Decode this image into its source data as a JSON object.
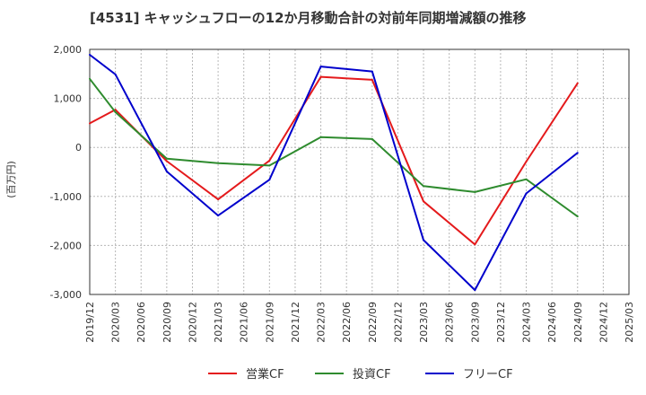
{
  "chart_data": {
    "type": "line",
    "title": "[4531]  キャッシュフローの12か月移動合計の対前年同期増減額の推移",
    "ylabel": "(百万円)",
    "xlabel": "",
    "ylim": [
      -3000,
      2000
    ],
    "yticks": [
      2000,
      1000,
      0,
      -1000,
      -2000,
      -3000
    ],
    "ytick_labels": [
      "2,000",
      "1,000",
      "0",
      "-1,000",
      "-2,000",
      "-3,000"
    ],
    "x_labels": [
      "2019/12",
      "2020/03",
      "2020/06",
      "2020/09",
      "2020/12",
      "2021/03",
      "2021/06",
      "2021/09",
      "2021/12",
      "2022/03",
      "2022/06",
      "2022/09",
      "2022/12",
      "2023/03",
      "2023/06",
      "2023/09",
      "2023/12",
      "2024/03",
      "2024/06",
      "2024/09",
      "2024/12",
      "2025/03"
    ],
    "grid": true,
    "legend_position": "bottom",
    "series": [
      {
        "name": "営業CF",
        "color": "#e41a1c",
        "values": [
          490,
          770,
          null,
          -280,
          null,
          -1060,
          null,
          -270,
          null,
          1440,
          null,
          1380,
          null,
          -1100,
          null,
          -1980,
          null,
          -290,
          null,
          1310,
          null,
          null
        ]
      },
      {
        "name": "投資CF",
        "color": "#2e8b2e",
        "values": [
          1400,
          720,
          null,
          -230,
          null,
          -320,
          null,
          -370,
          null,
          210,
          null,
          170,
          null,
          -790,
          null,
          -910,
          null,
          -650,
          null,
          -1410,
          null,
          null
        ]
      },
      {
        "name": "フリーCF",
        "color": "#0000cc",
        "values": [
          1890,
          1490,
          null,
          -490,
          null,
          -1390,
          null,
          -660,
          null,
          1650,
          null,
          1550,
          null,
          -1890,
          null,
          -2910,
          null,
          -940,
          null,
          -110,
          null,
          null
        ]
      }
    ]
  }
}
